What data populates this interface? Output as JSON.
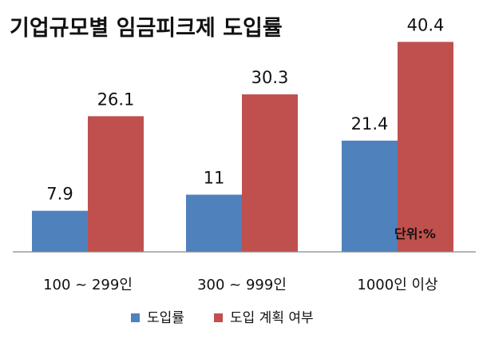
{
  "chart_data": {
    "type": "bar",
    "title": "기업규모별 임금피크제 도입률",
    "unit_note": "단위:%",
    "categories": [
      "100 ~ 299인",
      "300 ~ 999인",
      "1000인 이상"
    ],
    "series": [
      {
        "name": "도입률",
        "values": [
          7.9,
          11,
          21.4
        ],
        "color": "#4F81BD"
      },
      {
        "name": "도입 계획 여부",
        "values": [
          26.1,
          30.3,
          40.4
        ],
        "color": "#C0504D"
      }
    ],
    "ylim": [
      0,
      46
    ],
    "grid": false,
    "legend_position": "bottom"
  }
}
